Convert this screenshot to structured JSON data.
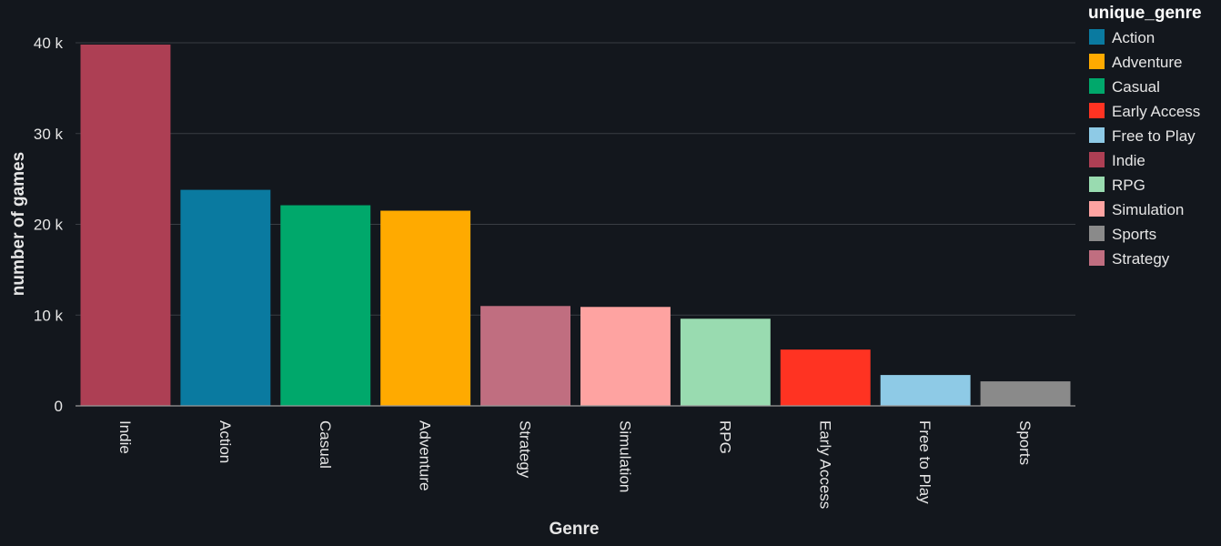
{
  "chart_data": {
    "type": "bar",
    "categories": [
      "Indie",
      "Action",
      "Casual",
      "Adventure",
      "Strategy",
      "Simulation",
      "RPG",
      "Early Access",
      "Free to Play",
      "Sports"
    ],
    "values": [
      39800,
      23800,
      22100,
      21500,
      11000,
      10900,
      9600,
      6200,
      3400,
      2700
    ],
    "bar_colors": {
      "Action": "#0a7aa0",
      "Adventure": "#ffaa00",
      "Casual": "#00a86b",
      "Early Access": "#ff3322",
      "Free to Play": "#8ecae6",
      "Indie": "#ad3f54",
      "RPG": "#99dbb0",
      "Simulation": "#fea3a1",
      "Sports": "#8a8a8a",
      "Strategy": "#c06e80"
    },
    "xlabel": "Genre",
    "ylabel": "number of games",
    "ylim": [
      0,
      40000
    ],
    "yticks": [
      {
        "value": 0,
        "label": "0"
      },
      {
        "value": 10000,
        "label": "10 k"
      },
      {
        "value": 20000,
        "label": "20 k"
      },
      {
        "value": 30000,
        "label": "30 k"
      },
      {
        "value": 40000,
        "label": "40 k"
      }
    ],
    "grid": true,
    "legend": {
      "title": "unique_genre",
      "placement": "top-right",
      "entries": [
        "Action",
        "Adventure",
        "Casual",
        "Early Access",
        "Free to Play",
        "Indie",
        "RPG",
        "Simulation",
        "Sports",
        "Strategy"
      ]
    },
    "colors": {
      "background": "#13171d",
      "grid": "#3a3e44",
      "axis": "#9a9a9a",
      "text": "#e6e6e6"
    }
  }
}
